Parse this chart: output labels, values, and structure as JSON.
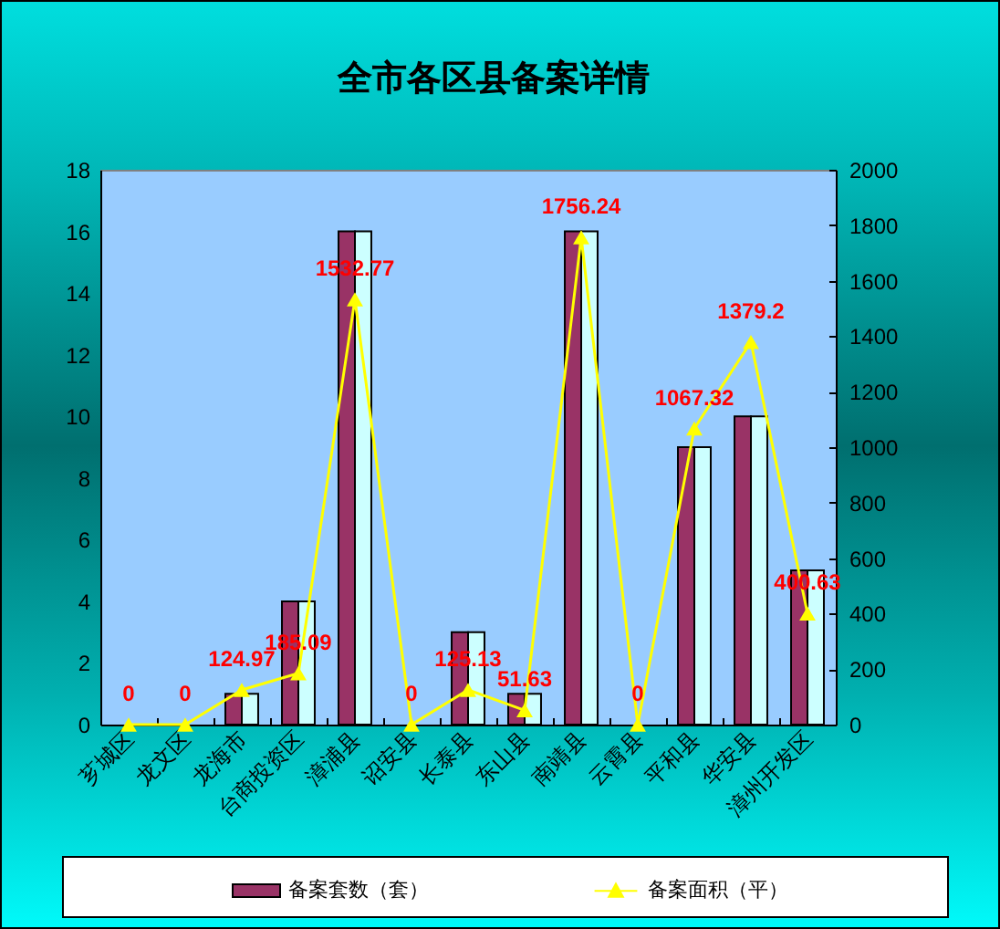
{
  "chart_data": {
    "type": "bar",
    "title": "全市各区县备案详情",
    "categories": [
      "芗城区",
      "龙文区",
      "龙海市",
      "台商投资区",
      "漳浦县",
      "诏安县",
      "长泰县",
      "东山县",
      "南靖县",
      "云霄县",
      "平和县",
      "华安县",
      "漳州开发区"
    ],
    "series": [
      {
        "name": "备案套数（套）",
        "color": "#993366",
        "values": [
          0,
          0,
          1,
          4,
          16,
          0,
          3,
          1,
          16,
          0,
          9,
          10,
          5
        ]
      },
      {
        "color": "#ccffff",
        "values": [
          0,
          0,
          1,
          4,
          16,
          0,
          3,
          1,
          16,
          0,
          9,
          10,
          5
        ]
      },
      {
        "name": "备案面积（平）",
        "type": "line",
        "axis": "y2",
        "color": "#ffff00",
        "values": [
          0,
          0,
          124.97,
          185.09,
          1532.77,
          0,
          125.13,
          51.63,
          1756.24,
          0,
          1067.32,
          1379.2,
          400.63
        ],
        "value_labels": [
          "0",
          "0",
          "124.97",
          "185.09",
          "1532.77",
          "0",
          "125.13",
          "51.63",
          "1756.24",
          "0",
          "1067.32",
          "1379.2",
          "400.63"
        ]
      }
    ],
    "ylim": [
      0,
      18
    ],
    "yticks": [
      0,
      2,
      4,
      6,
      8,
      10,
      12,
      14,
      16,
      18
    ],
    "y2lim": [
      0,
      2000
    ],
    "y2ticks": [
      0,
      200,
      400,
      600,
      800,
      1000,
      1200,
      1400,
      1600,
      1800,
      2000
    ],
    "legend": "bottom",
    "marker": "triangle",
    "grid": false
  }
}
